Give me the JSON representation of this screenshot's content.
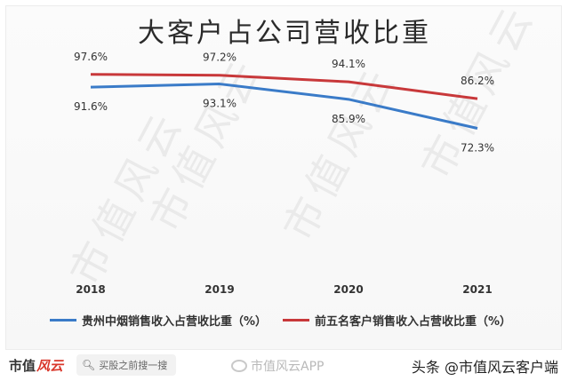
{
  "title": "大客户占公司营收比重",
  "watermark_text": "市值风云",
  "chart_data": {
    "type": "line",
    "title": "大客户占公司营收比重",
    "categories": [
      "2018",
      "2019",
      "2020",
      "2021"
    ],
    "ylim": [
      0,
      100
    ],
    "grid": false,
    "legend_position": "bottom",
    "series": [
      {
        "name": "贵州中烟销售收入占营收比重（%）",
        "color": "#3a7bc8",
        "values": [
          91.6,
          93.1,
          85.9,
          72.3
        ],
        "labels": [
          "91.6%",
          "93.1%",
          "85.9%",
          "72.3%"
        ]
      },
      {
        "name": "前五名客户销售收入占营收比重（%）",
        "color": "#c8383a",
        "values": [
          97.6,
          97.2,
          94.1,
          86.2
        ],
        "labels": [
          "97.6%",
          "97.2%",
          "94.1%",
          "86.2%"
        ]
      }
    ]
  },
  "footer": {
    "brand_main": "市值",
    "brand_accent": "风云",
    "slogan": "买股之前搜一搜",
    "weibo_text": "市值风云APP",
    "toutiao_text": "头条 @市值风云客户端"
  }
}
